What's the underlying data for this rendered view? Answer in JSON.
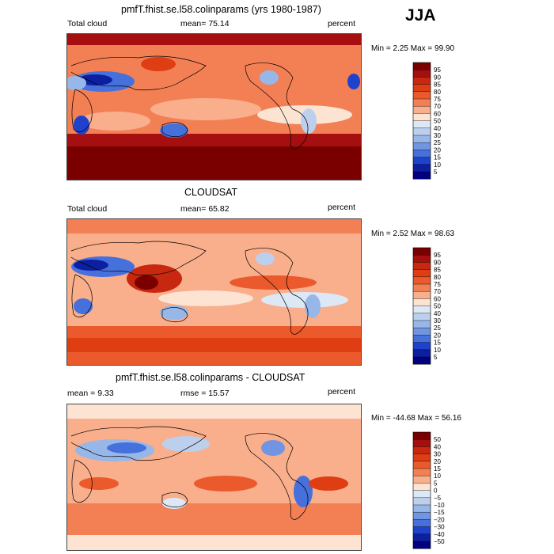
{
  "season": "JJA",
  "panels": [
    {
      "title": "pmfT.fhist.se.l58.colinparams (yrs 1980-1987)",
      "left_label": "Total cloud",
      "stat1": "mean=  75.14",
      "stat2": "",
      "units": "percent",
      "minmax": "Min =   2.25 Max =  99.90"
    },
    {
      "title": "CLOUDSAT",
      "left_label": "Total cloud",
      "stat1": "mean=  65.82",
      "stat2": "",
      "units": "percent",
      "minmax": "Min =   2.52 Max =  98.63"
    },
    {
      "title": "pmfT.fhist.se.l58.colinparams - CLOUDSAT",
      "left_label": "",
      "stat1": "mean =    9.33",
      "stat2": "rmse =   15.57",
      "units": "percent",
      "minmax": "Min = -44.68 Max =  56.16"
    }
  ],
  "chart_data": [
    {
      "type": "heatmap",
      "title": "pmfT.fhist.se.l58.colinparams (yrs 1980-1987)",
      "variable": "Total cloud",
      "units": "percent",
      "mean": 75.14,
      "min": 2.25,
      "max": 99.9,
      "colorbar": {
        "labels": [
          "95",
          "90",
          "85",
          "80",
          "75",
          "70",
          "60",
          "50",
          "40",
          "30",
          "25",
          "20",
          "15",
          "10",
          "5"
        ],
        "colors": [
          "#7a0000",
          "#a50f0f",
          "#c82810",
          "#de3e12",
          "#eb5a2c",
          "#f38055",
          "#f9ae8c",
          "#fde4d2",
          "#dde8f6",
          "#bcd0ee",
          "#97b7e8",
          "#7295e2",
          "#4670dc",
          "#1f42cd",
          "#0d1fa1",
          "#000080"
        ]
      }
    },
    {
      "type": "heatmap",
      "title": "CLOUDSAT",
      "variable": "Total cloud",
      "units": "percent",
      "mean": 65.82,
      "min": 2.52,
      "max": 98.63,
      "colorbar": {
        "labels": [
          "95",
          "90",
          "85",
          "80",
          "75",
          "70",
          "60",
          "50",
          "40",
          "30",
          "25",
          "20",
          "15",
          "10",
          "5"
        ],
        "colors": [
          "#7a0000",
          "#a50f0f",
          "#c82810",
          "#de3e12",
          "#eb5a2c",
          "#f38055",
          "#f9ae8c",
          "#fde4d2",
          "#dde8f6",
          "#bcd0ee",
          "#97b7e8",
          "#7295e2",
          "#4670dc",
          "#1f42cd",
          "#0d1fa1",
          "#000080"
        ]
      }
    },
    {
      "type": "heatmap",
      "title": "pmfT.fhist.se.l58.colinparams - CLOUDSAT",
      "units": "percent",
      "mean": 9.33,
      "rmse": 15.57,
      "min": -44.68,
      "max": 56.16,
      "colorbar": {
        "labels": [
          "50",
          "40",
          "30",
          "20",
          "15",
          "10",
          "5",
          "0",
          "−5",
          "−10",
          "−15",
          "−20",
          "−30",
          "−40",
          "−50"
        ],
        "colors": [
          "#7a0000",
          "#a50f0f",
          "#c82810",
          "#de3e12",
          "#eb5a2c",
          "#f38055",
          "#f9ae8c",
          "#fde4d2",
          "#dde8f6",
          "#bcd0ee",
          "#97b7e8",
          "#7295e2",
          "#4670dc",
          "#1f42cd",
          "#0d1fa1",
          "#000080"
        ]
      }
    }
  ]
}
